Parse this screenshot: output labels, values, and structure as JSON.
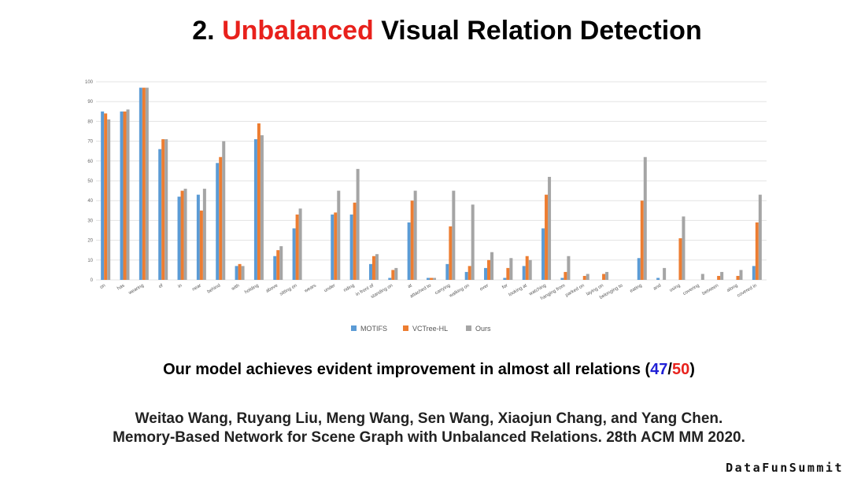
{
  "slide": {
    "title_prefix": "2. ",
    "title_accent": "Unbalanced",
    "title_rest": " Visual Relation Detection",
    "caption_main": "Our model achieves evident improvement in almost all relations (",
    "caption_num_a": "47",
    "caption_sep": "/",
    "caption_num_b": "50",
    "caption_end": ")",
    "citation_line1": "Weitao Wang, Ruyang Liu, Meng Wang, Sen Wang, Xiaojun Chang, and Yang Chen.",
    "citation_line2": "Memory-Based Network for Scene Graph with Unbalanced Relations. 28th ACM MM 2020.",
    "watermark": "DataFunSummit"
  },
  "colors": {
    "accent_red": "#e8211c",
    "accent_blue": "#1f1fd6",
    "series": [
      "#5b9bd5",
      "#ed7d31",
      "#a5a5a5"
    ]
  },
  "chart_data": {
    "type": "bar",
    "title": "",
    "xlabel": "",
    "ylabel": "",
    "ylim": [
      0,
      100
    ],
    "yticks": [
      0,
      10,
      20,
      30,
      40,
      50,
      60,
      70,
      80,
      90,
      100
    ],
    "legend_position": "bottom-center",
    "categories": [
      "on",
      "has",
      "wearing",
      "of",
      "in",
      "near",
      "behind",
      "with",
      "holding",
      "above",
      "sitting on",
      "wears",
      "under",
      "riding",
      "in front of",
      "standing on",
      "at",
      "attached to",
      "carrying",
      "walking on",
      "over",
      "for",
      "looking at",
      "watching",
      "hanging from",
      "parked on",
      "laying on",
      "belonging to",
      "eating",
      "and",
      "using",
      "covering",
      "between",
      "along",
      "covered in"
    ],
    "series": [
      {
        "name": "MOTIFS",
        "values": [
          85,
          85,
          97,
          66,
          42,
          43,
          59,
          7,
          71,
          12,
          26,
          0,
          33,
          33,
          8,
          1,
          29,
          1,
          8,
          4,
          6,
          1,
          7,
          26,
          1,
          0,
          0,
          0,
          11,
          1,
          0,
          0,
          0,
          0,
          7
        ]
      },
      {
        "name": "VCTree-HL",
        "values": [
          84,
          85,
          97,
          71,
          45,
          35,
          62,
          8,
          79,
          15,
          33,
          0,
          34,
          39,
          12,
          5,
          40,
          1,
          27,
          7,
          10,
          6,
          12,
          43,
          4,
          2,
          3,
          0,
          40,
          0,
          21,
          0,
          2,
          2,
          29
        ]
      },
      {
        "name": "Ours",
        "values": [
          81,
          86,
          97,
          71,
          46,
          46,
          70,
          7,
          73,
          17,
          36,
          0,
          45,
          56,
          13,
          6,
          45,
          1,
          45,
          38,
          14,
          11,
          10,
          52,
          12,
          3,
          4,
          0,
          62,
          6,
          32,
          3,
          4,
          5,
          43
        ]
      }
    ]
  }
}
